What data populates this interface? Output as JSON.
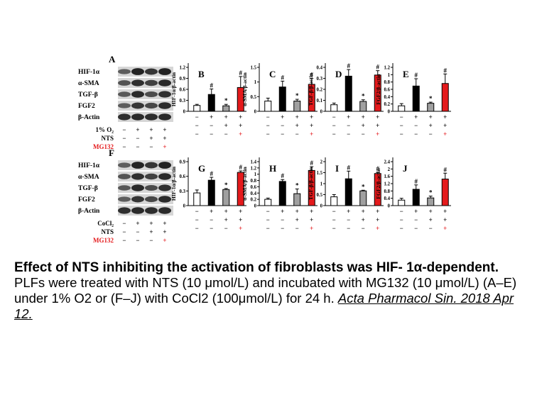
{
  "caption": {
    "title": "Effect of NTS inhibiting the activation of fibroblasts was HIF- 1α-dependent.",
    "body": "PLFs were treated with NTS (10 μmol/L) and incubated with MG132 (10 μmol/L) (A–E) under 1% O2 or (F–J) with CoCl2 (100μmol/L) for 24 h.",
    "citation": "Acta Pharmacol Sin. 2018 Apr 12."
  },
  "colors": {
    "control": "#ffffff",
    "stimulus": "#000000",
    "nts": "#a0a0a0",
    "mg132": "#e41a1c",
    "mg132_text": "#e41a1c"
  },
  "blots": [
    {
      "panel": "A",
      "bands": [
        "HIF-1α",
        "α-SMA",
        "TGF-β",
        "FGF2",
        "β-Actin"
      ],
      "conditions": [
        {
          "label": "1% O₂",
          "marks": [
            "−",
            "+",
            "+",
            "+"
          ]
        },
        {
          "label": "NTS",
          "marks": [
            "−",
            "−",
            "+",
            "+"
          ]
        },
        {
          "label": "MG132",
          "marks": [
            "−",
            "−",
            "−",
            "+"
          ],
          "color": "mg132"
        }
      ]
    },
    {
      "panel": "F",
      "bands": [
        "HIF-1α",
        "α-SMA",
        "TGF-β",
        "FGF2",
        "β-Actin"
      ],
      "conditions": [
        {
          "label": "CoCl₂",
          "marks": [
            "−",
            "+",
            "+",
            "+"
          ]
        },
        {
          "label": "NTS",
          "marks": [
            "−",
            "−",
            "+",
            "+"
          ]
        },
        {
          "label": "MG132",
          "marks": [
            "−",
            "−",
            "−",
            "+"
          ],
          "color": "mg132"
        }
      ]
    }
  ],
  "chart_data": [
    {
      "panel": "B",
      "type": "bar",
      "ylabel": "HIF-1α/β-actin",
      "ylim": [
        0,
        1.2
      ],
      "yticks": [
        "0",
        "0.3",
        "0.6",
        "0.9",
        "1.2"
      ],
      "values": [
        0.16,
        0.46,
        0.15,
        0.65
      ],
      "errors": [
        0.03,
        0.15,
        0.04,
        0.3
      ],
      "marks": [
        "",
        "#",
        "*",
        "#"
      ],
      "conditions": [
        [
          "−",
          "+",
          "+",
          "+"
        ],
        [
          "−",
          "−",
          "+",
          "+"
        ],
        [
          "−",
          "−",
          "−",
          "+"
        ]
      ]
    },
    {
      "panel": "C",
      "type": "bar",
      "ylabel": "α-SMA/β-actin",
      "ylim": [
        0,
        1.5
      ],
      "yticks": [
        "0",
        "0.5",
        "1",
        "1.5"
      ],
      "values": [
        0.35,
        0.83,
        0.35,
        0.92
      ],
      "errors": [
        0.1,
        0.2,
        0.06,
        0.2
      ],
      "marks": [
        "",
        "#",
        "*",
        "#"
      ],
      "conditions": [
        [
          "−",
          "+",
          "+",
          "+"
        ],
        [
          "−",
          "−",
          "+",
          "+"
        ],
        [
          "−",
          "−",
          "−",
          "+"
        ]
      ]
    },
    {
      "panel": "D",
      "type": "bar",
      "ylabel": "TGF-β/β-actin",
      "ylim": [
        0,
        0.4
      ],
      "yticks": [
        "0",
        "0.1",
        "0.2",
        "0.3",
        "0.4"
      ],
      "values": [
        0.06,
        0.32,
        0.09,
        0.33
      ],
      "errors": [
        0.015,
        0.06,
        0.015,
        0.04
      ],
      "marks": [
        "",
        "#",
        "*",
        "#"
      ],
      "conditions": [
        [
          "−",
          "+",
          "+",
          "+"
        ],
        [
          "−",
          "−",
          "+",
          "+"
        ],
        [
          "−",
          "−",
          "−",
          "+"
        ]
      ]
    },
    {
      "panel": "E",
      "type": "bar",
      "ylabel": "FGF2/β-actin",
      "ylim": [
        0,
        1.2
      ],
      "yticks": [
        "0",
        "0.2",
        "0.4",
        "0.6",
        "0.8",
        "1",
        "1.2"
      ],
      "values": [
        0.15,
        0.69,
        0.22,
        0.76
      ],
      "errors": [
        0.06,
        0.2,
        0.03,
        0.26
      ],
      "marks": [
        "",
        "#",
        "*",
        "#"
      ],
      "conditions": [
        [
          "−",
          "+",
          "+",
          "+"
        ],
        [
          "−",
          "−",
          "+",
          "+"
        ],
        [
          "−",
          "−",
          "−",
          "+"
        ]
      ]
    },
    {
      "panel": "G",
      "type": "bar",
      "ylabel": "HIF-1α/β-actin",
      "ylim": [
        0,
        0.9
      ],
      "yticks": [
        "0",
        "0.3",
        "0.6",
        "0.9"
      ],
      "values": [
        0.26,
        0.52,
        0.33,
        0.68
      ],
      "errors": [
        0.06,
        0.06,
        0.02,
        0.03
      ],
      "marks": [
        "",
        "#",
        "*",
        "#"
      ],
      "conditions": [
        [
          "−",
          "+",
          "+",
          "+"
        ],
        [
          "−",
          "−",
          "+",
          "+"
        ],
        [
          "−",
          "−",
          "−",
          "+"
        ]
      ]
    },
    {
      "panel": "H",
      "type": "bar",
      "ylabel": "α-SMA/β-actin",
      "ylim": [
        0,
        1.4
      ],
      "yticks": [
        "0",
        "0.2",
        "0.4",
        "0.6",
        "0.8",
        "1",
        "1.2",
        "1.4"
      ],
      "values": [
        0.2,
        0.77,
        0.38,
        1.12
      ],
      "errors": [
        0.04,
        0.06,
        0.15,
        0.12
      ],
      "marks": [
        "",
        "#",
        "*",
        "#"
      ],
      "conditions": [
        [
          "−",
          "+",
          "+",
          "+"
        ],
        [
          "−",
          "−",
          "+",
          "+"
        ],
        [
          "−",
          "−",
          "−",
          "+"
        ]
      ]
    },
    {
      "panel": "I",
      "type": "bar",
      "ylabel": "TGF-β/β-actin",
      "ylim": [
        0,
        2
      ],
      "yticks": [
        "0",
        "0.5",
        "1",
        "1.5",
        "2"
      ],
      "values": [
        0.4,
        1.22,
        0.67,
        1.46
      ],
      "errors": [
        0.1,
        0.35,
        0.03,
        0.05
      ],
      "marks": [
        "",
        "#",
        "*",
        "#"
      ],
      "conditions": [
        [
          "−",
          "+",
          "+",
          "+"
        ],
        [
          "−",
          "−",
          "+",
          "+"
        ],
        [
          "−",
          "−",
          "−",
          "+"
        ]
      ]
    },
    {
      "panel": "J",
      "type": "bar",
      "ylabel": "FGF2/β-actin",
      "ylim": [
        0,
        2.4
      ],
      "yticks": [
        "0",
        "0.4",
        "0.8",
        "1.2",
        "1.6",
        "2",
        "2.4"
      ],
      "values": [
        0.3,
        0.89,
        0.42,
        1.45
      ],
      "errors": [
        0.1,
        0.24,
        0.1,
        0.32
      ],
      "marks": [
        "",
        "#",
        "*",
        "#"
      ],
      "conditions": [
        [
          "−",
          "+",
          "+",
          "+"
        ],
        [
          "−",
          "−",
          "+",
          "+"
        ],
        [
          "−",
          "−",
          "−",
          "+"
        ]
      ]
    }
  ]
}
